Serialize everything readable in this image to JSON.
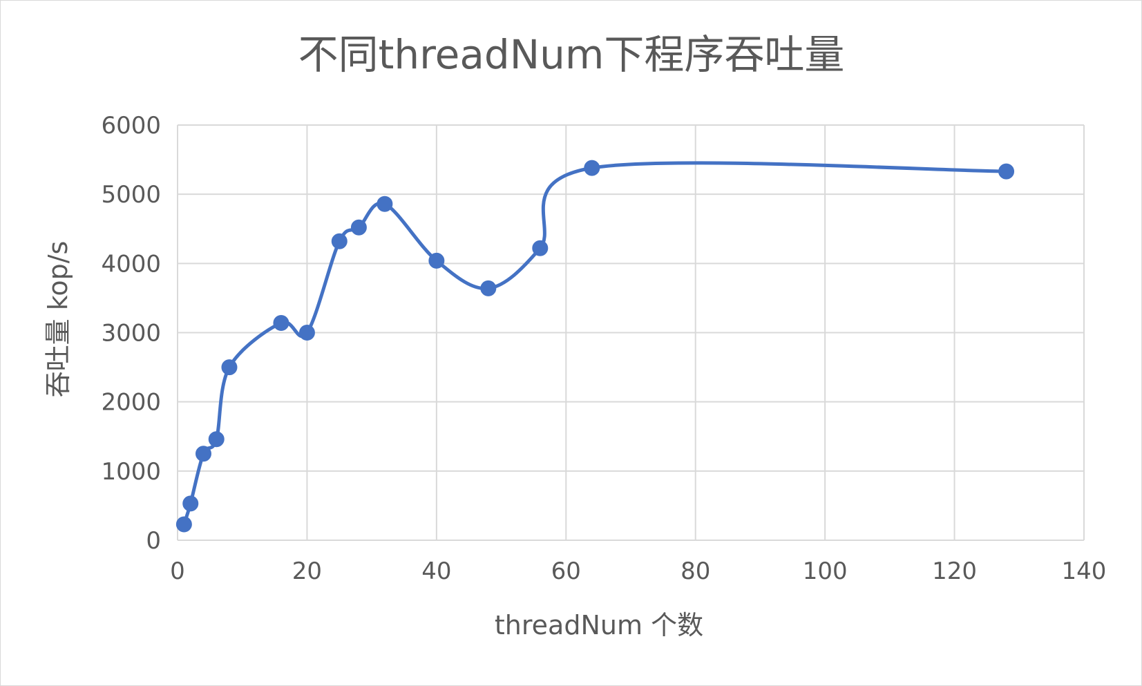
{
  "chart_data": {
    "type": "line",
    "title": "不同threadNum下程序吞吐量",
    "xlabel": "threadNum 个数",
    "ylabel": "吞吐量 kop/s",
    "xlim": [
      0,
      140
    ],
    "ylim": [
      0,
      6000
    ],
    "x_ticks": [
      0,
      20,
      40,
      60,
      80,
      100,
      120,
      140
    ],
    "y_ticks": [
      0,
      1000,
      2000,
      3000,
      4000,
      5000,
      6000
    ],
    "x_tick_labels": [
      "0",
      "20",
      "40",
      "60",
      "80",
      "100",
      "120",
      "140"
    ],
    "y_tick_labels": [
      "0",
      "1000",
      "2000",
      "3000",
      "4000",
      "5000",
      "6000"
    ],
    "grid": true,
    "smooth": true,
    "series": [
      {
        "color": "#4472c4",
        "points": [
          {
            "x": 1,
            "y": 230
          },
          {
            "x": 2,
            "y": 530
          },
          {
            "x": 4,
            "y": 1250
          },
          {
            "x": 6,
            "y": 1460
          },
          {
            "x": 8,
            "y": 2500
          },
          {
            "x": 16,
            "y": 3140
          },
          {
            "x": 20,
            "y": 3000
          },
          {
            "x": 25,
            "y": 4320
          },
          {
            "x": 28,
            "y": 4520
          },
          {
            "x": 32,
            "y": 4860
          },
          {
            "x": 40,
            "y": 4040
          },
          {
            "x": 48,
            "y": 3640
          },
          {
            "x": 56,
            "y": 4220
          },
          {
            "x": 64,
            "y": 5380
          },
          {
            "x": 128,
            "y": 5330
          }
        ]
      }
    ]
  }
}
